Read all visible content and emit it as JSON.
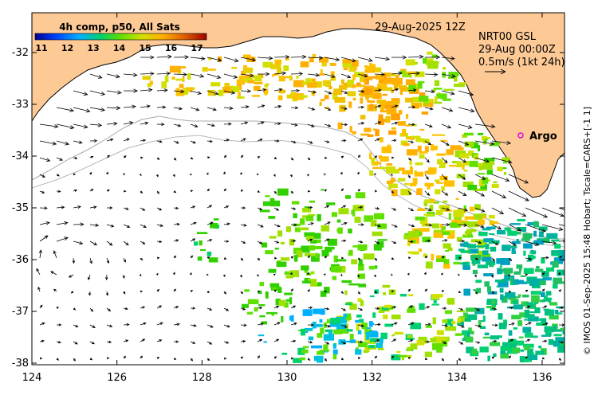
{
  "map": {
    "date_label": "29-Aug-2025 12Z",
    "legend": {
      "title": "4h comp, p50, All Sats",
      "ticks": [
        "11",
        "12",
        "13",
        "14",
        "15",
        "16",
        "17"
      ],
      "colors": [
        "#000090",
        "#0040ff",
        "#00b0ff",
        "#00d070",
        "#60e000",
        "#d0e000",
        "#ffb000",
        "#e06000",
        "#a00000"
      ]
    },
    "currents": {
      "product": "NRT00 GSL",
      "time": "29-Aug 00:00Z",
      "scale": "0.5m/s (1kt 24h)"
    },
    "argo_label": "Argo",
    "credit": "© IMOS 01-Sep-2025 15:48 Hobart; Tscale=CARS+[-1 1]",
    "x_ticks": [
      "124",
      "126",
      "128",
      "130",
      "132",
      "134",
      "136"
    ],
    "y_ticks": [
      "-32",
      "-33",
      "-34",
      "-35",
      "-36",
      "-37",
      "-38"
    ],
    "colors": {
      "land": "#fdc995",
      "ocean": "#ffffff",
      "bathymetry": "#a8a8a8",
      "argo": "#e000e0"
    }
  }
}
